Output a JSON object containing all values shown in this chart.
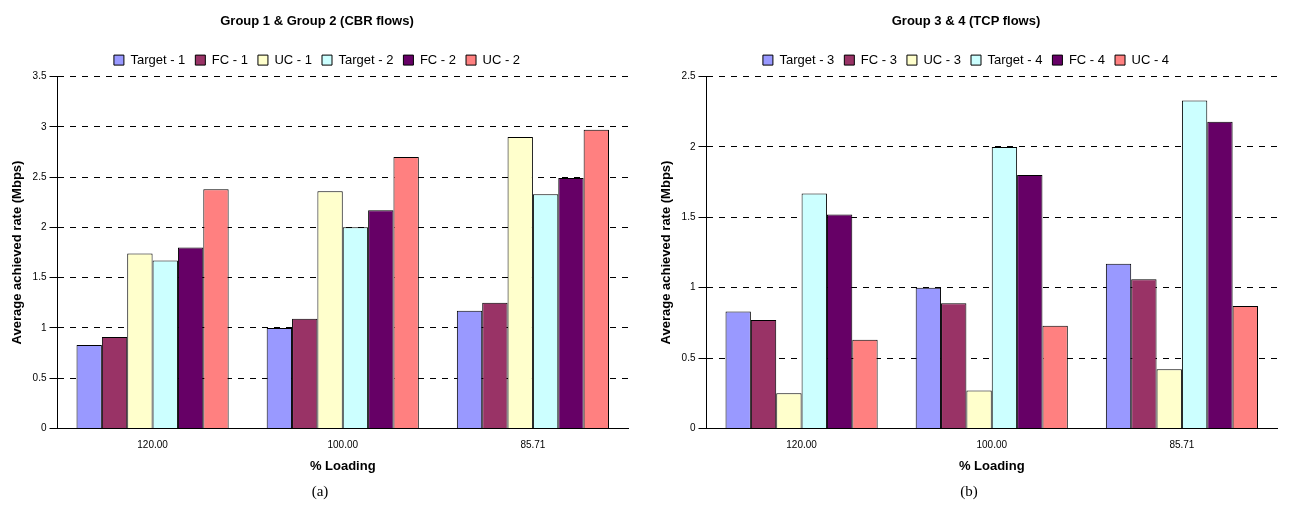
{
  "chart_data": [
    {
      "type": "bar",
      "title": "Group 1 & Group 2 (CBR flows)",
      "xlabel": "% Loading",
      "ylabel": "Average achieved rate (Mbps)",
      "categories": [
        "120.00",
        "100.00",
        "85.71"
      ],
      "ylim": [
        0,
        3.5
      ],
      "yticks": [
        0,
        0.5,
        1,
        1.5,
        2,
        2.5,
        3,
        3.5
      ],
      "grid": "y",
      "legend": "top",
      "annotations": [
        "(a)"
      ],
      "series": [
        {
          "name": "Target - 1",
          "color": "#9999ff",
          "values": [
            0.83,
            1.0,
            1.17
          ]
        },
        {
          "name": "FC - 1",
          "color": "#993366",
          "values": [
            0.91,
            1.09,
            1.25
          ]
        },
        {
          "name": "UC - 1",
          "color": "#ffffcc",
          "values": [
            1.74,
            2.36,
            2.9
          ]
        },
        {
          "name": "Target - 2",
          "color": "#ccffff",
          "values": [
            1.67,
            2.0,
            2.33
          ]
        },
        {
          "name": "FC - 2",
          "color": "#660066",
          "values": [
            1.8,
            2.17,
            2.49
          ]
        },
        {
          "name": "UC - 2",
          "color": "#ff8080",
          "values": [
            2.38,
            2.7,
            2.97
          ]
        }
      ]
    },
    {
      "type": "bar",
      "title": "Group 3 & 4 (TCP flows)",
      "xlabel": "% Loading",
      "ylabel": "Average achieved rate (Mbps)",
      "categories": [
        "120.00",
        "100.00",
        "85.71"
      ],
      "ylim": [
        0,
        2.5
      ],
      "yticks": [
        0,
        0.5,
        1,
        1.5,
        2,
        2.5
      ],
      "grid": "y",
      "legend": "top",
      "annotations": [
        "(b)"
      ],
      "series": [
        {
          "name": "Target - 3",
          "color": "#9999ff",
          "values": [
            0.83,
            1.0,
            1.17
          ]
        },
        {
          "name": "FC - 3",
          "color": "#993366",
          "values": [
            0.77,
            0.89,
            1.06
          ]
        },
        {
          "name": "UC - 3",
          "color": "#ffffcc",
          "values": [
            0.25,
            0.27,
            0.42
          ]
        },
        {
          "name": "Target - 4",
          "color": "#ccffff",
          "values": [
            1.67,
            2.0,
            2.33
          ]
        },
        {
          "name": "FC - 4",
          "color": "#660066",
          "values": [
            1.52,
            1.8,
            2.18
          ]
        },
        {
          "name": "UC - 4",
          "color": "#ff8080",
          "values": [
            0.63,
            0.73,
            0.87
          ]
        }
      ]
    }
  ]
}
